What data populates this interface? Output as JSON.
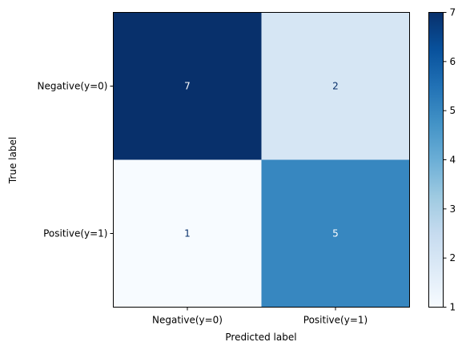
{
  "chart_data": {
    "type": "heatmap",
    "title": "",
    "xlabel": "Predicted label",
    "ylabel": "True label",
    "x_categories": [
      "Negative(y=0)",
      "Positive(y=1)"
    ],
    "y_categories": [
      "Negative(y=0)",
      "Positive(y=1)"
    ],
    "values": [
      [
        7,
        2
      ],
      [
        1,
        5
      ]
    ],
    "colormap": "Blues",
    "colorbar": {
      "min": 1,
      "max": 7,
      "ticks": [
        "1",
        "2",
        "3",
        "4",
        "5",
        "6",
        "7"
      ]
    },
    "grid": false
  }
}
